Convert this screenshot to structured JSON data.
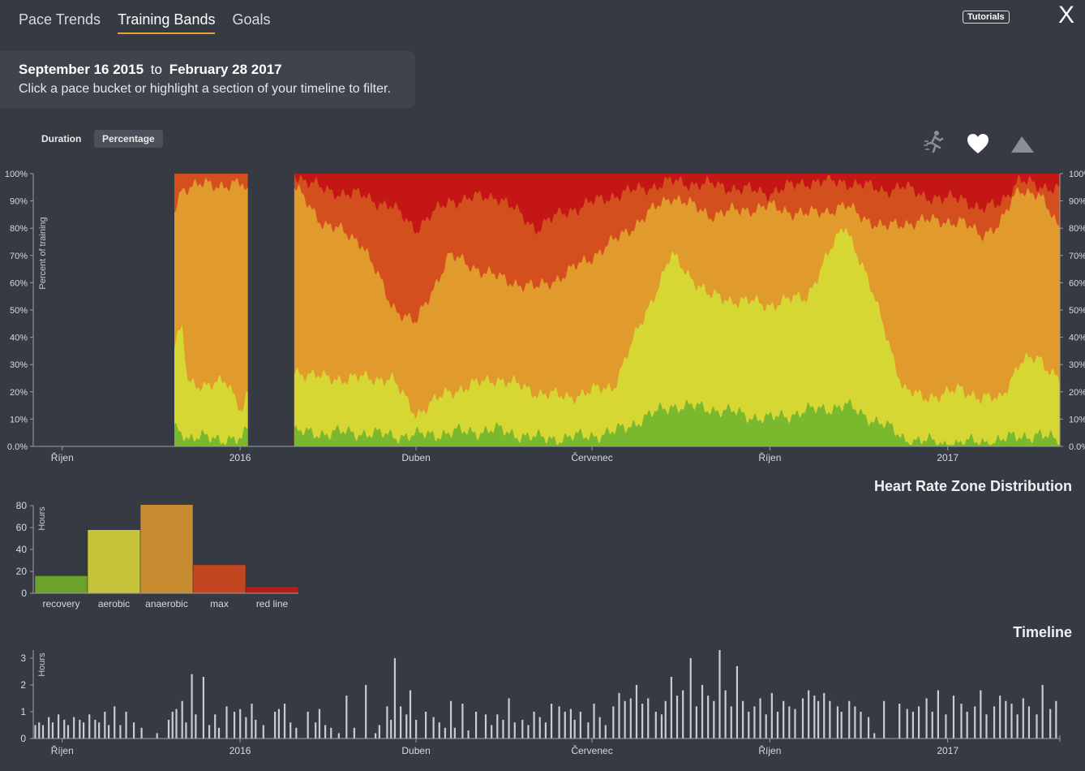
{
  "tabs": [
    {
      "label": "Pace Trends"
    },
    {
      "label": "Training Bands"
    },
    {
      "label": "Goals"
    }
  ],
  "header": {
    "tutorials_label": "Tutorials",
    "close_label": "X"
  },
  "info": {
    "start_date": "September 16 2015",
    "to": "to",
    "end_date": "February 28 2017",
    "hint": "Click a pace bucket or highlight a section of your timeline to filter."
  },
  "view_toggle": {
    "duration": "Duration",
    "percentage": "Percentage"
  },
  "mode_icons": [
    "runner-icon",
    "heart-icon",
    "mountain-icon"
  ],
  "sections": {
    "hr_title": "Heart Rate Zone Distribution",
    "timeline_title": "Timeline"
  },
  "chart_data": [
    {
      "type": "area",
      "title": "Training Bands",
      "ylabel": "Percent of training",
      "ylim": [
        0,
        100
      ],
      "y_ticks": [
        "100%",
        "90%",
        "80%",
        "70%",
        "60%",
        "50%",
        "40%",
        "30%",
        "20%",
        "10%",
        "0.0%"
      ],
      "y_ticks_right": [
        "100%",
        "90%",
        "80%",
        "70%",
        "60%",
        "50%",
        "40%",
        "30%",
        "20%",
        "10%",
        "0.0%"
      ],
      "x_ticks": [
        {
          "label": "Říjen",
          "day": 15
        },
        {
          "label": "2016",
          "day": 107
        },
        {
          "label": "Duben",
          "day": 198
        },
        {
          "label": "Červenec",
          "day": 289
        },
        {
          "label": "Říjen",
          "day": 381
        },
        {
          "label": "2017",
          "day": 473
        }
      ],
      "x_range_days": [
        0,
        531
      ],
      "segments": [
        {
          "start": 73,
          "end": 111
        },
        {
          "start": 135,
          "end": 531
        }
      ],
      "series": [
        {
          "name": "recovery",
          "color": "#7ab82e",
          "days": [
            73,
            77,
            80,
            90,
            100,
            108,
            111,
            135,
            150,
            170,
            185,
            198,
            215,
            240,
            260,
            275,
            300,
            330,
            350,
            380,
            400,
            420,
            440,
            450,
            470,
            480,
            490,
            500,
            510,
            520,
            531
          ],
          "values": [
            7,
            6,
            3,
            3,
            3,
            2,
            7,
            5,
            5,
            5,
            4,
            4,
            5,
            6,
            3,
            3,
            5,
            15,
            14,
            10,
            13,
            15,
            8,
            3,
            1,
            1,
            2,
            2,
            4,
            4,
            2
          ]
        },
        {
          "name": "aerobic",
          "color": "#d7d734",
          "days": [
            73,
            77,
            80,
            90,
            100,
            108,
            111,
            135,
            150,
            170,
            185,
            198,
            215,
            240,
            260,
            275,
            300,
            330,
            350,
            380,
            400,
            420,
            440,
            450,
            470,
            480,
            490,
            500,
            510,
            520,
            531
          ],
          "values": [
            37,
            43,
            23,
            23,
            23,
            14,
            20,
            28,
            25,
            25,
            25,
            12,
            20,
            25,
            20,
            18,
            22,
            70,
            55,
            52,
            55,
            82,
            45,
            20,
            18,
            22,
            17,
            18,
            30,
            33,
            24
          ]
        },
        {
          "name": "anaerobic",
          "color": "#e19a2c",
          "days": [
            73,
            77,
            80,
            90,
            100,
            108,
            111,
            135,
            150,
            170,
            185,
            198,
            215,
            240,
            260,
            275,
            300,
            330,
            350,
            380,
            400,
            420,
            440,
            450,
            470,
            480,
            490,
            500,
            510,
            520,
            531
          ],
          "values": [
            87,
            95,
            95,
            96,
            96,
            96,
            92,
            95,
            82,
            75,
            52,
            45,
            70,
            62,
            58,
            63,
            75,
            92,
            85,
            88,
            85,
            88,
            80,
            82,
            83,
            82,
            78,
            81,
            95,
            92,
            80
          ]
        },
        {
          "name": "max",
          "color": "#d3501e",
          "days": [
            73,
            77,
            80,
            90,
            100,
            108,
            111,
            135,
            150,
            170,
            185,
            198,
            215,
            240,
            260,
            275,
            300,
            330,
            350,
            380,
            400,
            420,
            440,
            450,
            470,
            480,
            490,
            500,
            510,
            520,
            531
          ],
          "values": [
            100,
            100,
            100,
            100,
            100,
            100,
            100,
            100,
            94,
            92,
            88,
            80,
            90,
            92,
            80,
            86,
            92,
            97,
            96,
            93,
            97,
            97,
            94,
            95,
            90,
            92,
            86,
            90,
            97,
            96,
            94
          ]
        },
        {
          "name": "red line",
          "color": "#c41715",
          "days": [
            73,
            531
          ],
          "values": [
            100,
            100
          ]
        }
      ]
    },
    {
      "type": "bar",
      "title": "Heart Rate Zone Distribution",
      "ylabel": "Hours",
      "ylim": [
        0,
        80
      ],
      "y_ticks": [
        0,
        20,
        40,
        60,
        80
      ],
      "categories": [
        "recovery",
        "aerobic",
        "anaerobic",
        "max",
        "red line"
      ],
      "values": [
        16,
        58,
        81,
        26,
        6
      ],
      "colors": [
        "#6da12e",
        "#c5c43a",
        "#c78b30",
        "#c2461f",
        "#b71d19"
      ]
    },
    {
      "type": "bar",
      "title": "Timeline",
      "ylabel": "Hours",
      "ylim": [
        0,
        3.3
      ],
      "y_ticks": [
        0,
        1,
        2,
        3
      ],
      "x_range_days": [
        0,
        531
      ],
      "x_ticks": [
        {
          "label": "Říjen",
          "day": 15
        },
        {
          "label": "2016",
          "day": 107
        },
        {
          "label": "Duben",
          "day": 198
        },
        {
          "label": "Červenec",
          "day": 289
        },
        {
          "label": "Říjen",
          "day": 381
        },
        {
          "label": "2017",
          "day": 473
        }
      ],
      "days": [
        1,
        3,
        5,
        8,
        10,
        13,
        16,
        18,
        21,
        24,
        26,
        29,
        32,
        34,
        37,
        39,
        42,
        45,
        48,
        52,
        56,
        64,
        70,
        72,
        74,
        77,
        79,
        82,
        84,
        88,
        91,
        94,
        96,
        100,
        104,
        107,
        110,
        113,
        115,
        119,
        125,
        127,
        130,
        133,
        136,
        142,
        146,
        148,
        151,
        154,
        158,
        162,
        166,
        172,
        177,
        179,
        183,
        185,
        187,
        190,
        193,
        195,
        198,
        203,
        207,
        210,
        213,
        216,
        218,
        222,
        225,
        229,
        234,
        237,
        240,
        243,
        246,
        249,
        253,
        256,
        259,
        262,
        265,
        268,
        272,
        275,
        278,
        280,
        283,
        287,
        290,
        293,
        296,
        300,
        303,
        306,
        309,
        312,
        315,
        318,
        322,
        325,
        327,
        330,
        333,
        336,
        340,
        343,
        346,
        349,
        352,
        355,
        358,
        361,
        364,
        367,
        370,
        373,
        376,
        379,
        382,
        385,
        388,
        391,
        394,
        398,
        401,
        404,
        406,
        409,
        412,
        416,
        418,
        422,
        425,
        428,
        432,
        435,
        440,
        448,
        452,
        455,
        458,
        462,
        465,
        468,
        472,
        476,
        480,
        483,
        487,
        490,
        493,
        497,
        500,
        503,
        506,
        509,
        512,
        515,
        519,
        522,
        526,
        529
      ],
      "values": [
        0.5,
        0.6,
        0.5,
        0.8,
        0.6,
        0.9,
        0.7,
        0.5,
        0.8,
        0.7,
        0.6,
        0.9,
        0.7,
        0.6,
        1.0,
        0.5,
        1.2,
        0.5,
        1.0,
        0.6,
        0.4,
        0.2,
        0.7,
        1.0,
        1.1,
        1.4,
        0.6,
        2.4,
        0.9,
        2.3,
        0.5,
        0.9,
        0.4,
        1.2,
        1.0,
        1.1,
        0.8,
        1.3,
        0.7,
        0.5,
        1.0,
        1.1,
        1.3,
        0.6,
        0.4,
        1.0,
        0.6,
        1.1,
        0.5,
        0.4,
        0.2,
        1.6,
        0.4,
        2.0,
        0.2,
        0.5,
        1.2,
        0.7,
        3.0,
        1.2,
        0.9,
        1.8,
        0.7,
        1.0,
        0.8,
        0.6,
        0.4,
        1.4,
        0.4,
        1.3,
        0.3,
        1.0,
        0.9,
        0.5,
        0.9,
        0.7,
        1.5,
        0.6,
        0.7,
        0.5,
        1.0,
        0.8,
        0.6,
        1.3,
        1.2,
        1.0,
        1.1,
        0.7,
        1.0,
        0.6,
        1.3,
        0.8,
        0.5,
        1.2,
        1.7,
        1.4,
        1.5,
        2.0,
        1.3,
        1.5,
        1.0,
        0.9,
        1.4,
        2.3,
        1.6,
        1.8,
        3.0,
        1.2,
        2.0,
        1.6,
        1.4,
        3.3,
        1.8,
        1.2,
        2.7,
        1.4,
        1.0,
        1.2,
        1.5,
        0.9,
        1.7,
        1.0,
        1.4,
        1.2,
        1.1,
        1.5,
        1.8,
        1.6,
        1.4,
        1.7,
        1.4,
        1.2,
        1.0,
        1.4,
        1.2,
        1.0,
        0.8,
        0.2,
        1.4,
        1.3,
        1.1,
        1.0,
        1.2,
        1.5,
        1.0,
        1.8,
        0.9,
        1.6,
        1.3,
        1.0,
        1.2,
        1.8,
        0.9,
        1.2,
        1.6,
        1.4,
        1.3,
        0.9,
        1.5,
        1.2,
        0.9,
        2.0,
        1.1,
        1.4
      ]
    }
  ]
}
